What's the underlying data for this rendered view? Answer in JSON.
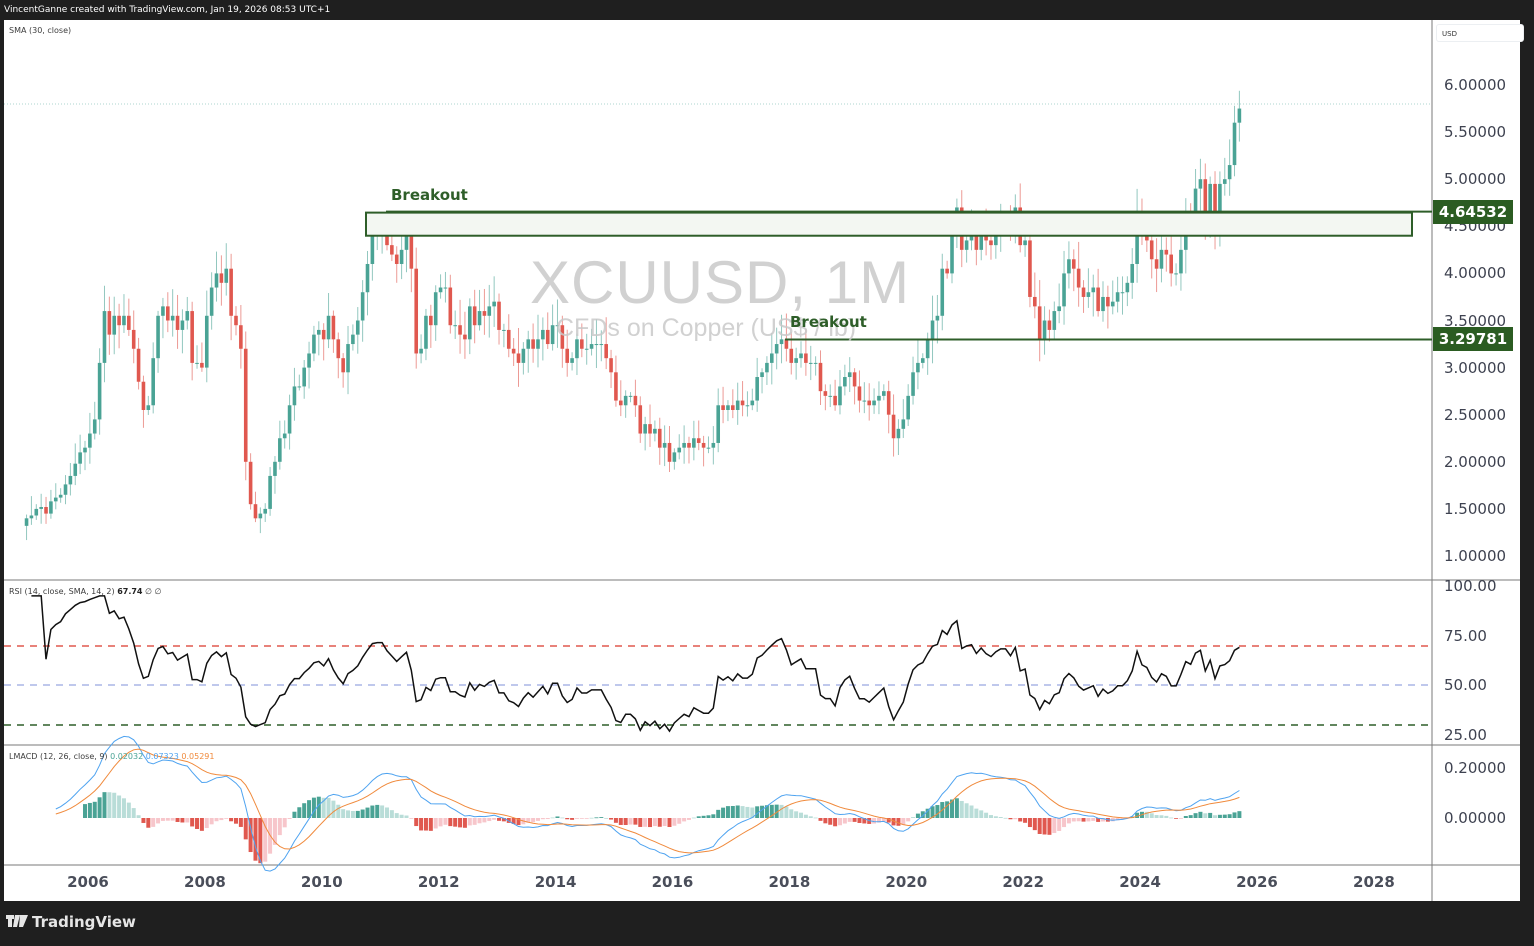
{
  "header": {
    "attribution": "VincentGanne created with TradingView.com, Jan 19, 2026 08:53 UTC+1"
  },
  "chart": {
    "symbol_title": "XCUUSD, 1M",
    "symbol_subtitle": "CFDs on Copper (US$ / lb)",
    "sma_legend": "SMA (30, close)",
    "currency_label": "USD",
    "price_axis_labels": [
      "6.00000",
      "5.50000",
      "5.00000",
      "4.50000",
      "4.00000",
      "3.50000",
      "3.00000",
      "2.50000",
      "2.00000",
      "1.50000",
      "1.00000"
    ],
    "time_axis_labels": [
      "2006",
      "2008",
      "2010",
      "2012",
      "2014",
      "2016",
      "2018",
      "2020",
      "2022",
      "2024",
      "2026",
      "2028"
    ],
    "annotations": [
      {
        "label": "Breakout",
        "level": "4.64532"
      },
      {
        "label": "Breakout",
        "level": "3.29781"
      }
    ],
    "colors": {
      "up": "#4aa395",
      "down": "#e0584f",
      "annotation": "#2e5e29",
      "rsi_line": "#111111",
      "rsi_upper": "#e0584f",
      "rsi_mid": "#7f90d8",
      "rsi_lower": "#2e5e29",
      "macd": "#4ea3f0",
      "signal": "#f08a3c"
    }
  },
  "rsi": {
    "legend_name": "RSI (14, close, SMA, 14, 2)",
    "legend_value": "67.74",
    "legend_extra": "∅ ∅",
    "axis_labels": [
      "100.00",
      "75.00",
      "50.00",
      "25.00"
    ]
  },
  "macd": {
    "legend_name": "LMACD (12, 26, close, 9)",
    "hist_value": "0.02032",
    "macd_value": "0.07323",
    "signal_value": "0.05291",
    "axis_labels": [
      "0.20000",
      "0.00000"
    ]
  },
  "footer": {
    "brand": "TradingView"
  },
  "chart_data": {
    "type": "candlestick",
    "title": "XCUUSD, 1M — CFDs on Copper (US$ / lb)",
    "xlabel": "",
    "ylabel": "USD",
    "ylim": [
      0.85,
      6.6
    ],
    "x_ticks": [
      "2006",
      "2008",
      "2010",
      "2012",
      "2014",
      "2016",
      "2018",
      "2020",
      "2022",
      "2024",
      "2026",
      "2028"
    ],
    "y_ticks": [
      1.0,
      1.5,
      2.0,
      2.5,
      3.0,
      3.5,
      4.0,
      4.5,
      5.0,
      5.5,
      6.0
    ],
    "horizontal_levels": [
      {
        "label": "Breakout (zone top)",
        "value": 4.64532
      },
      {
        "label": "Breakout zone bottom",
        "value": 4.4
      },
      {
        "label": "Breakout",
        "value": 3.29781
      }
    ],
    "start": "2005-01",
    "closes": [
      1.4,
      1.43,
      1.5,
      1.52,
      1.45,
      1.58,
      1.62,
      1.65,
      1.76,
      1.85,
      1.98,
      2.1,
      2.15,
      2.3,
      2.45,
      3.05,
      3.6,
      3.35,
      3.55,
      3.45,
      3.55,
      3.4,
      3.2,
      2.85,
      2.55,
      2.6,
      3.1,
      3.55,
      3.65,
      3.5,
      3.55,
      3.4,
      3.5,
      3.6,
      3.05,
      3.05,
      3.0,
      3.55,
      3.85,
      4.0,
      3.9,
      4.05,
      3.55,
      3.45,
      3.2,
      2.0,
      1.55,
      1.4,
      1.45,
      1.5,
      1.85,
      2.0,
      2.25,
      2.3,
      2.6,
      2.8,
      2.8,
      3.0,
      3.15,
      3.35,
      3.4,
      3.3,
      3.55,
      3.3,
      3.1,
      2.95,
      3.25,
      3.35,
      3.5,
      3.8,
      4.1,
      4.4,
      4.45,
      4.45,
      4.3,
      4.2,
      4.1,
      4.25,
      4.4,
      4.05,
      3.15,
      3.2,
      3.55,
      3.45,
      3.8,
      3.85,
      3.85,
      3.45,
      3.45,
      3.35,
      3.3,
      3.65,
      3.45,
      3.6,
      3.55,
      3.65,
      3.7,
      3.4,
      3.4,
      3.2,
      3.15,
      3.05,
      3.2,
      3.3,
      3.2,
      3.3,
      3.4,
      3.25,
      3.45,
      3.45,
      3.2,
      3.05,
      3.1,
      3.3,
      3.2,
      3.2,
      3.25,
      3.25,
      3.25,
      3.1,
      2.95,
      2.65,
      2.6,
      2.7,
      2.7,
      2.6,
      2.3,
      2.4,
      2.3,
      2.35,
      2.15,
      2.2,
      2.0,
      2.1,
      2.15,
      2.2,
      2.15,
      2.25,
      2.2,
      2.15,
      2.15,
      2.2,
      2.6,
      2.55,
      2.6,
      2.55,
      2.65,
      2.6,
      2.6,
      2.65,
      2.9,
      2.95,
      3.05,
      3.15,
      3.25,
      3.3,
      3.2,
      3.05,
      3.1,
      3.15,
      3.05,
      3.05,
      3.05,
      2.75,
      2.7,
      2.7,
      2.6,
      2.8,
      2.9,
      2.95,
      2.8,
      2.65,
      2.65,
      2.6,
      2.65,
      2.7,
      2.75,
      2.5,
      2.25,
      2.35,
      2.45,
      2.7,
      2.95,
      3.05,
      3.1,
      3.3,
      3.5,
      3.55,
      4.05,
      4.0,
      4.45,
      4.7,
      4.25,
      4.35,
      4.4,
      4.25,
      4.45,
      4.35,
      4.3,
      4.45,
      4.55,
      4.55,
      4.45,
      4.7,
      4.3,
      4.35,
      3.75,
      3.65,
      3.3,
      3.5,
      3.4,
      3.6,
      3.65,
      4.0,
      4.15,
      4.05,
      3.85,
      3.75,
      3.8,
      3.85,
      3.6,
      3.75,
      3.65,
      3.7,
      3.8,
      3.8,
      3.9,
      4.1,
      4.65,
      4.4,
      4.35,
      4.15,
      4.05,
      4.25,
      4.2,
      4.0,
      4.0,
      4.25,
      4.6,
      4.55,
      4.9,
      5.0,
      4.6,
      4.95,
      4.5,
      4.95,
      5.0,
      5.15,
      5.6,
      5.75
    ],
    "rsi_levels": {
      "upper": 70,
      "middle": 50,
      "lower": 30
    },
    "rsi_last": 67.74,
    "macd_last": {
      "histogram": 0.02032,
      "macd": 0.07323,
      "signal": 0.05291
    }
  }
}
